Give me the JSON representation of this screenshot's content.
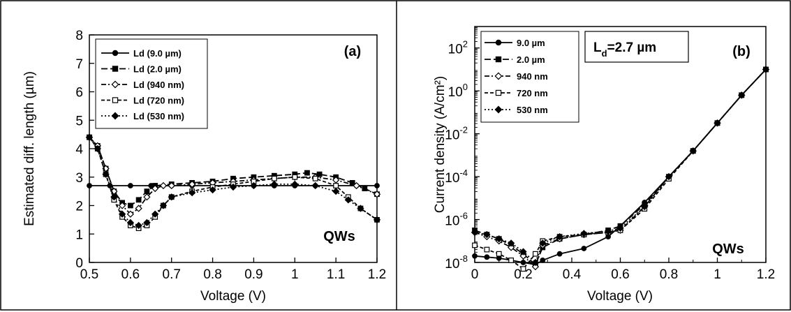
{
  "chart_data": [
    {
      "type": "line",
      "panel_label": "(a)",
      "xlabel": "Voltage (V)",
      "ylabel": "Estimated diff. length (µm)",
      "xlim": [
        0.5,
        1.2
      ],
      "ylim": [
        0,
        8
      ],
      "xticks": [
        "0.5",
        "0.6",
        "0.7",
        "0.8",
        "0.9",
        "1",
        "1.1",
        "1.2"
      ],
      "yticks": [
        "0",
        "1",
        "2",
        "3",
        "4",
        "5",
        "6",
        "7",
        "8"
      ],
      "annotation": "QWs",
      "legend_position": "top-left",
      "grid": false,
      "series": [
        {
          "name": "Ld (9.0 µm)",
          "marker": "circle",
          "dash": "solid",
          "x": [
            0.5,
            0.55,
            0.6,
            0.65,
            0.7,
            0.75,
            0.8,
            0.85,
            0.9,
            0.95,
            1.0,
            1.05,
            1.1,
            1.15,
            1.2
          ],
          "values": [
            2.7,
            2.7,
            2.7,
            2.7,
            2.7,
            2.7,
            2.7,
            2.7,
            2.7,
            2.7,
            2.7,
            2.7,
            2.7,
            2.7,
            2.7
          ]
        },
        {
          "name": "Ld (2.0 µm)",
          "marker": "square",
          "dash": "long",
          "x": [
            0.5,
            0.52,
            0.54,
            0.56,
            0.58,
            0.6,
            0.62,
            0.64,
            0.66,
            0.7,
            0.75,
            0.8,
            0.85,
            0.9,
            0.95,
            1.0,
            1.03,
            1.06,
            1.1,
            1.14,
            1.17,
            1.2
          ],
          "values": [
            4.4,
            4.1,
            3.3,
            2.5,
            2.1,
            2.0,
            2.2,
            2.5,
            2.7,
            2.75,
            2.8,
            2.85,
            2.95,
            3.0,
            3.05,
            3.1,
            3.15,
            3.1,
            3.0,
            2.8,
            2.6,
            2.4
          ]
        },
        {
          "name": "Ld (940 nm)",
          "marker": "open-diamond",
          "dash": "dashdot",
          "x": [
            0.5,
            0.52,
            0.54,
            0.56,
            0.58,
            0.6,
            0.62,
            0.64,
            0.66,
            0.68,
            0.7,
            0.75,
            0.8,
            0.85,
            0.9,
            0.95,
            1.0,
            1.05,
            1.1,
            1.15,
            1.2
          ],
          "values": [
            4.4,
            4.1,
            3.3,
            2.5,
            2.0,
            1.7,
            1.9,
            2.3,
            2.6,
            2.7,
            2.7,
            2.75,
            2.8,
            2.85,
            2.9,
            2.95,
            3.0,
            3.0,
            2.9,
            2.7,
            2.4
          ]
        },
        {
          "name": "Ld (720 nm)",
          "marker": "open-square",
          "dash": "dash",
          "x": [
            0.5,
            0.52,
            0.54,
            0.56,
            0.58,
            0.6,
            0.62,
            0.64,
            0.66,
            0.68,
            0.7,
            0.75,
            0.8,
            0.85,
            0.9,
            0.95,
            1.0,
            1.05,
            1.1,
            1.13,
            1.16,
            1.2
          ],
          "values": [
            4.4,
            4.0,
            3.1,
            2.2,
            1.6,
            1.3,
            1.2,
            1.3,
            1.6,
            2.0,
            2.3,
            2.5,
            2.65,
            2.75,
            2.85,
            2.95,
            3.0,
            2.95,
            2.7,
            2.3,
            1.9,
            1.5
          ]
        },
        {
          "name": "Ld (530 nm)",
          "marker": "diamond",
          "dash": "dot",
          "x": [
            0.5,
            0.52,
            0.54,
            0.56,
            0.58,
            0.6,
            0.62,
            0.64,
            0.66,
            0.68,
            0.7,
            0.75,
            0.8,
            0.85,
            0.9,
            0.95,
            1.0,
            1.05,
            1.1,
            1.13,
            1.16,
            1.2
          ],
          "values": [
            4.4,
            4.0,
            3.1,
            2.3,
            1.7,
            1.4,
            1.3,
            1.4,
            1.7,
            2.0,
            2.3,
            2.45,
            2.55,
            2.65,
            2.7,
            2.75,
            2.75,
            2.7,
            2.5,
            2.2,
            1.9,
            1.5
          ]
        }
      ]
    },
    {
      "type": "line",
      "panel_label": "(b)",
      "xlabel": "Voltage (V)",
      "ylabel": "Current density (A/cm²)",
      "xlim": [
        0,
        1.2
      ],
      "ylim": [
        1e-08,
        1000
      ],
      "yscale": "log",
      "xticks": [
        "0",
        "0.2",
        "0.4",
        "0.6",
        "0.8",
        "1",
        "1.2"
      ],
      "yticks": [
        {
          "base": "10",
          "exp": "-8"
        },
        {
          "base": "10",
          "exp": "-6"
        },
        {
          "base": "10",
          "exp": "-4"
        },
        {
          "base": "10",
          "exp": "-2"
        },
        {
          "base": "10",
          "exp": "0"
        },
        {
          "base": "10",
          "exp": "2"
        }
      ],
      "annotation": "QWs",
      "inset_text": {
        "main": "L",
        "sub": "d",
        "rest": "=2.7 µm"
      },
      "legend_position": "top-left",
      "grid": false,
      "series": [
        {
          "name": "9.0 µm",
          "marker": "circle",
          "dash": "solid",
          "x": [
            0,
            0.05,
            0.1,
            0.15,
            0.2,
            0.25,
            0.28,
            0.35,
            0.45,
            0.55,
            0.6,
            0.7,
            0.8,
            0.9,
            1.0,
            1.1,
            1.2
          ],
          "log10_values": [
            -7.7,
            -7.75,
            -7.8,
            -7.9,
            -8.0,
            -8.1,
            -7.9,
            -7.6,
            -7.35,
            -6.8,
            -6.3,
            -5.2,
            -4.0,
            -2.8,
            -1.5,
            -0.2,
            1.0
          ]
        },
        {
          "name": "2.0 µm",
          "marker": "square",
          "dash": "long",
          "x": [
            0,
            0.05,
            0.1,
            0.15,
            0.2,
            0.25,
            0.28,
            0.35,
            0.45,
            0.55,
            0.6,
            0.7,
            0.8,
            0.9,
            1.0,
            1.1,
            1.2
          ],
          "log10_values": [
            -6.5,
            -6.7,
            -6.9,
            -7.2,
            -7.6,
            -8.1,
            -7.3,
            -6.9,
            -6.7,
            -6.5,
            -6.3,
            -5.3,
            -4.0,
            -2.8,
            -1.5,
            -0.2,
            1.0
          ]
        },
        {
          "name": "940 nm",
          "marker": "open-diamond",
          "dash": "dashdot",
          "x": [
            0,
            0.05,
            0.1,
            0.15,
            0.2,
            0.25,
            0.28,
            0.35,
            0.45,
            0.55,
            0.6,
            0.7,
            0.8,
            0.9,
            1.0,
            1.1,
            1.2
          ],
          "log10_values": [
            -6.6,
            -6.8,
            -7.0,
            -7.3,
            -7.7,
            -8.2,
            -7.2,
            -6.9,
            -6.7,
            -6.6,
            -6.5,
            -5.4,
            -4.0,
            -2.8,
            -1.5,
            -0.2,
            1.0
          ]
        },
        {
          "name": "720 nm",
          "marker": "open-square",
          "dash": "dash",
          "x": [
            0,
            0.05,
            0.1,
            0.15,
            0.2,
            0.25,
            0.28,
            0.35,
            0.45,
            0.55,
            0.6,
            0.7,
            0.8,
            0.9,
            1.0,
            1.1,
            1.2
          ],
          "log10_values": [
            -7.2,
            -7.4,
            -7.6,
            -7.9,
            -8.3,
            -7.6,
            -7.0,
            -6.8,
            -6.7,
            -6.6,
            -6.5,
            -5.5,
            -4.1,
            -2.8,
            -1.5,
            -0.2,
            1.0
          ]
        },
        {
          "name": "530 nm",
          "marker": "diamond",
          "dash": "dot",
          "x": [
            0,
            0.05,
            0.1,
            0.15,
            0.2,
            0.25,
            0.28,
            0.35,
            0.45,
            0.55,
            0.6,
            0.7,
            0.8,
            0.9,
            1.0,
            1.1,
            1.2
          ],
          "log10_values": [
            -6.6,
            -6.7,
            -6.9,
            -7.1,
            -7.5,
            -8.0,
            -7.1,
            -6.8,
            -6.65,
            -6.55,
            -6.4,
            -5.4,
            -4.0,
            -2.8,
            -1.5,
            -0.2,
            1.0
          ]
        }
      ]
    }
  ]
}
